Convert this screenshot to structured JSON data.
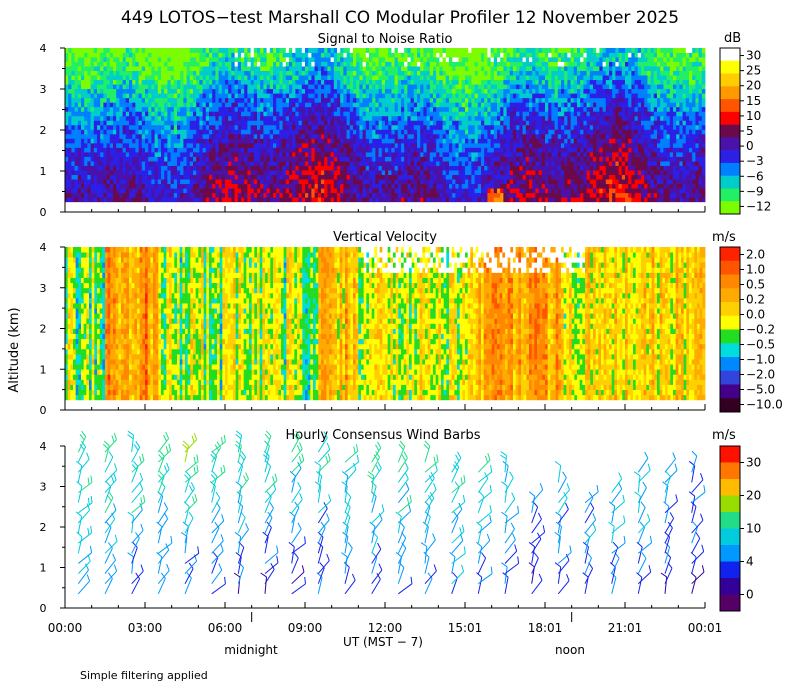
{
  "title": "449 LOTOS−test Marshall CO Modular Profiler 12 November 2025",
  "ylabel": "Altitude (km)",
  "xlabel": "UT  (MST − 7)",
  "footer": "Simple filtering applied",
  "time_ticks": [
    "00:00",
    "03:00",
    "06:00",
    "09:00",
    "12:00",
    "15:01",
    "18:01",
    "21:01",
    "00:01"
  ],
  "day_markers": {
    "midnight": "midnight",
    "noon": "noon"
  },
  "chart_data": [
    {
      "type": "heatmap",
      "title": "Signal to Noise Ratio",
      "unit": "dB",
      "ylim": [
        0,
        4
      ],
      "yticks": [
        "0",
        "1",
        "2",
        "3",
        "4"
      ],
      "x_range_hours": [
        0,
        24
      ],
      "data_altitude_range_km": [
        0.25,
        4.0
      ],
      "colorbar_labels": [
        "30",
        "25",
        "20",
        "15",
        "10",
        "5",
        "0",
        "−3",
        "−6",
        "−9",
        "−12"
      ],
      "colors": [
        "#ffffff",
        "#ffff00",
        "#ffcc00",
        "#ff9900",
        "#ff5500",
        "#ff0000",
        "#6b0a4a",
        "#4a12a8",
        "#2c1fe6",
        "#0080ff",
        "#00cccc",
        "#22ee66",
        "#7cfc00"
      ],
      "profile": [
        {
          "alt": 0.25,
          "level": 6.3
        },
        {
          "alt": 1.0,
          "level": 6.9
        },
        {
          "alt": 1.6,
          "level": 7.6
        },
        {
          "alt": 2.2,
          "level": 8.4
        },
        {
          "alt": 2.8,
          "level": 9.4
        },
        {
          "alt": 3.4,
          "level": 10.6
        },
        {
          "alt": 4.0,
          "level": 11.4
        }
      ]
    },
    {
      "type": "heatmap",
      "title": "Vertical Velocity",
      "unit": "m/s",
      "ylim": [
        0,
        4
      ],
      "yticks": [
        "0",
        "1",
        "2",
        "3",
        "4"
      ],
      "x_range_hours": [
        0,
        24
      ],
      "data_altitude_range_km": [
        0.25,
        4.0
      ],
      "colorbar_labels": [
        "2.0",
        "1.0",
        "0.5",
        "0.2",
        "0.0",
        "−0.2",
        "−0.5",
        "−1.0",
        "−2.0",
        "−5.0",
        "−10.0"
      ],
      "colors": [
        "#ff2200",
        "#ff5500",
        "#ff8800",
        "#ffaa00",
        "#ffd000",
        "#ffff00",
        "#22dd22",
        "#00dddd",
        "#0088ff",
        "#3344dd",
        "#440088",
        "#330022"
      ],
      "bands": [
        {
          "start": 0.0,
          "end": 1.5,
          "level": 5.6
        },
        {
          "start": 1.5,
          "end": 3.5,
          "level": 2.6
        },
        {
          "start": 3.5,
          "end": 9.5,
          "level": 5.4
        },
        {
          "start": 9.5,
          "end": 11.0,
          "level": 3.8
        },
        {
          "start": 11.0,
          "end": 15.5,
          "level": 4.8
        },
        {
          "start": 15.5,
          "end": 18.5,
          "level": 3.0
        },
        {
          "start": 18.5,
          "end": 24.0,
          "level": 4.3
        }
      ]
    },
    {
      "type": "wind_barbs",
      "title": "Hourly Consensus Wind Barbs",
      "unit": "m/s",
      "ylim": [
        0,
        4
      ],
      "yticks": [
        "0",
        "1",
        "2",
        "3",
        "4"
      ],
      "x_range_hours": [
        0,
        24
      ],
      "colorbar_labels": [
        "30",
        "20",
        "10",
        "4",
        "0"
      ],
      "colorbar_colors": [
        "#ff1100",
        "#ff7700",
        "#ffbb00",
        "#99dd00",
        "#22dd88",
        "#00ccdd",
        "#0099ff",
        "#1122ee",
        "#330099",
        "#550066"
      ],
      "hours": [
        0.5,
        1.5,
        2.5,
        3.5,
        4.5,
        5.5,
        6.5,
        7.5,
        8.5,
        9.5,
        10.5,
        11.5,
        12.5,
        13.5,
        14.5,
        15.5,
        16.5,
        17.5,
        18.5,
        19.5,
        20.5,
        21.5,
        22.5,
        23.5
      ],
      "altitude_levels_km": [
        0.35,
        0.6,
        0.85,
        1.1,
        1.35,
        1.6,
        1.85,
        2.1,
        2.35,
        2.6,
        2.85,
        3.1,
        3.35,
        3.6,
        3.85
      ],
      "top_altitude_km_by_hour": [
        4.0,
        3.85,
        3.85,
        3.85,
        3.85,
        3.85,
        3.85,
        3.85,
        3.85,
        3.85,
        3.6,
        3.6,
        3.6,
        3.6,
        3.35,
        3.35,
        3.35,
        2.6,
        3.1,
        2.6,
        2.85,
        3.35,
        3.35,
        3.35
      ],
      "wind_speed_ms_by_hour": [
        {
          "hour": 0.5,
          "low": 5,
          "high": 8
        },
        {
          "hour": 4.5,
          "low": 2,
          "high": 10
        },
        {
          "hour": 9.5,
          "low": 2,
          "high": 8
        },
        {
          "hour": 14.5,
          "low": 4,
          "high": 10
        },
        {
          "hour": 17.5,
          "low": 2,
          "high": 6
        },
        {
          "hour": 20.5,
          "low": 3,
          "high": 8
        },
        {
          "hour": 23.5,
          "low": 2,
          "high": 5
        }
      ]
    }
  ]
}
